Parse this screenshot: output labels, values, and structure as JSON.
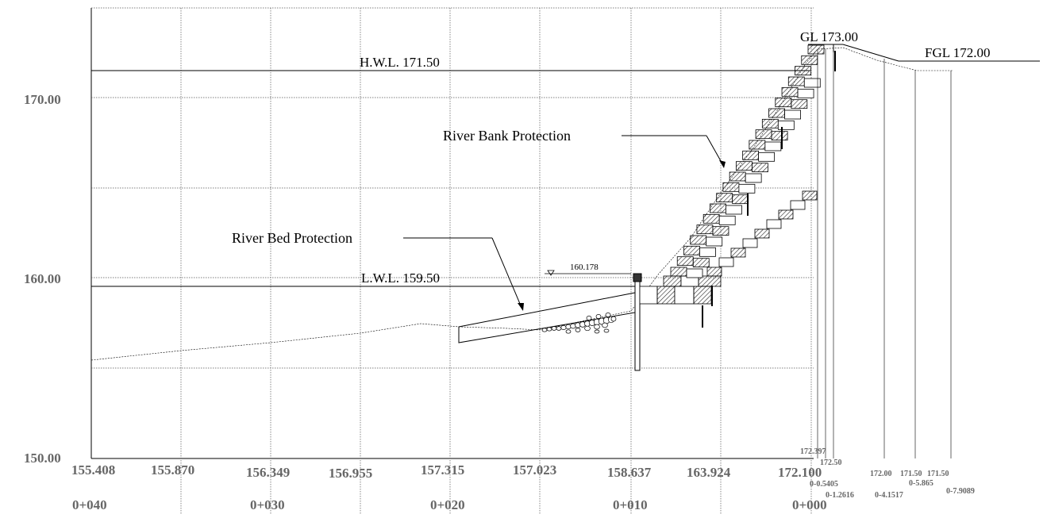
{
  "drawing": {
    "y_axis_labels": {
      "v170": "170.00",
      "v160": "160.00",
      "v150": "150.00"
    },
    "levels": {
      "hwl": "H.W.L.  171.50",
      "lwl": "L.W.L.  159.50",
      "gl": "GL  173.00",
      "fgl": "FGL  172.00",
      "water_mark": "160.178"
    },
    "callouts": {
      "bank": "River Bank Protection",
      "bed": "River Bed Protection"
    },
    "ground_levels": [
      "155.408",
      "155.870",
      "156.349",
      "156.955",
      "157.315",
      "157.023",
      "158.637",
      "163.924",
      "172.100"
    ],
    "chainages": [
      "0+040",
      "0+030",
      "0+020",
      "0+010",
      "0+000"
    ],
    "right_section": {
      "v1": "172.397",
      "v2": "172.50",
      "v3": "172.00",
      "v4": "171.50",
      "v5": "171.50",
      "o1": "0-0.5405",
      "o2": "0-1.2616",
      "o3": "0-4.1517",
      "o4": "0-5.865",
      "o5": "0-7.9089"
    }
  }
}
